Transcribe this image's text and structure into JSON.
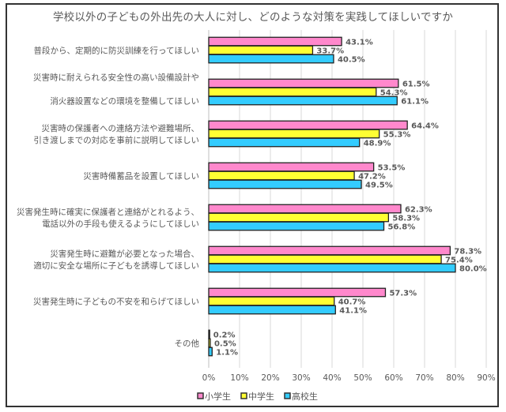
{
  "chart_data": {
    "type": "bar",
    "orientation": "horizontal",
    "title": "学校以外の子どもの外出先の大人に対し、どのような対策を実践してほしいですか",
    "categories": [
      [
        "普段から、定期的に防災訓練を行ってほしい"
      ],
      [
        "災害時に耐えられる安全性の高い設備設計や",
        "消火器設置などの環境を整備してほしい"
      ],
      [
        "災害時の保護者への連絡方法や避難場所、",
        "引き渡しまでの対応を事前に説明してほしい"
      ],
      [
        "災害時備蓄品を設置してほしい"
      ],
      [
        "災害発生時に確実に保護者と連絡がとれるよう、",
        "電話以外の手段も使えるようにしてほしい"
      ],
      [
        "災害発生時に避難が必要となった場合、",
        "適切に安全な場所に子どもを誘導してほしい"
      ],
      [
        "災害発生時に子どもの不安を和らげてほしい"
      ],
      [
        "その他"
      ]
    ],
    "series": [
      {
        "name": "小学生",
        "color": "#FF88CC",
        "values": [
          43.1,
          61.5,
          64.4,
          53.5,
          62.3,
          78.3,
          57.3,
          0.2
        ]
      },
      {
        "name": "中学生",
        "color": "#FFFF33",
        "values": [
          33.7,
          54.3,
          55.3,
          47.2,
          58.3,
          75.4,
          40.7,
          0.5
        ]
      },
      {
        "name": "高校生",
        "color": "#33CCFF",
        "values": [
          40.5,
          61.1,
          48.9,
          49.5,
          56.8,
          80.0,
          41.1,
          1.1
        ]
      }
    ],
    "xlim": [
      0,
      90
    ],
    "x_ticks": [
      "0%",
      "10%",
      "20%",
      "30%",
      "40%",
      "50%",
      "60%",
      "70%",
      "80%",
      "90%"
    ],
    "value_suffix": "%",
    "grid": "vertical",
    "legend": "bottom-left",
    "xlabel": "",
    "ylabel": ""
  }
}
